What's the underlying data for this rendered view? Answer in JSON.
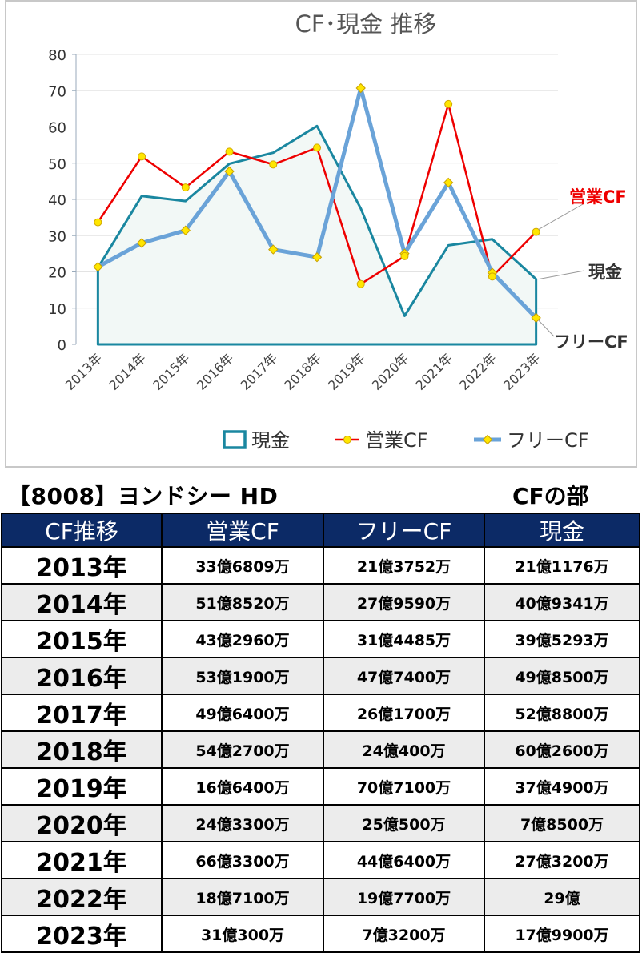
{
  "chart_data": {
    "type": "line",
    "title": "CF･現金 推移",
    "categories": [
      "2013年",
      "2014年",
      "2015年",
      "2016年",
      "2017年",
      "2018年",
      "2019年",
      "2020年",
      "2021年",
      "2022年",
      "2023年"
    ],
    "ylim": [
      0,
      80
    ],
    "yticks": [
      0,
      10,
      20,
      30,
      40,
      50,
      60,
      70,
      80
    ],
    "grid": true,
    "legend_position": "bottom",
    "series": [
      {
        "name": "現金",
        "style": "area",
        "color": "#1a87a0",
        "fill": "#f2f8f6",
        "values": [
          21.1176,
          40.9341,
          39.5293,
          49.85,
          52.88,
          60.26,
          37.49,
          7.85,
          27.32,
          29.0,
          17.99
        ]
      },
      {
        "name": "営業CF",
        "style": "line-marker",
        "color": "#ee0000",
        "marker": "circle",
        "values": [
          33.6809,
          51.852,
          43.296,
          53.19,
          49.64,
          54.27,
          16.64,
          24.33,
          66.33,
          18.71,
          31.03
        ]
      },
      {
        "name": "フリーCF",
        "style": "line-marker",
        "color": "#6aa3d8",
        "marker": "diamond",
        "values": [
          21.3752,
          27.959,
          31.4485,
          47.74,
          26.17,
          24.04,
          70.71,
          25.05,
          44.64,
          19.77,
          7.32
        ]
      }
    ],
    "end_labels": [
      {
        "series": "営業CF",
        "text": "営業CF",
        "color": "#ee0000"
      },
      {
        "series": "現金",
        "text": "現金",
        "color": "#333333"
      },
      {
        "series": "フリーCF",
        "text": "フリーCF",
        "color": "#333333"
      }
    ]
  },
  "page": {
    "heading": "【8008】ヨンドシー HD",
    "section_label": "CFの部"
  },
  "table": {
    "headers": [
      "CF推移",
      "営業CF",
      "フリーCF",
      "現金"
    ],
    "rows": [
      [
        "2013年",
        "33億6809万",
        "21億3752万",
        "21億1176万"
      ],
      [
        "2014年",
        "51億8520万",
        "27億9590万",
        "40億9341万"
      ],
      [
        "2015年",
        "43億2960万",
        "31億4485万",
        "39億5293万"
      ],
      [
        "2016年",
        "53億1900万",
        "47億7400万",
        "49億8500万"
      ],
      [
        "2017年",
        "49億6400万",
        "26億1700万",
        "52億8800万"
      ],
      [
        "2018年",
        "54億2700万",
        "24億400万",
        "60億2600万"
      ],
      [
        "2019年",
        "16億6400万",
        "70億7100万",
        "37億4900万"
      ],
      [
        "2020年",
        "24億3300万",
        "25億500万",
        "7億8500万"
      ],
      [
        "2021年",
        "66億3300万",
        "44億6400万",
        "27億3200万"
      ],
      [
        "2022年",
        "18億7100万",
        "19億7700万",
        "29億"
      ],
      [
        "2023年",
        "31億300万",
        "7億3200万",
        "17億9900万"
      ]
    ]
  }
}
